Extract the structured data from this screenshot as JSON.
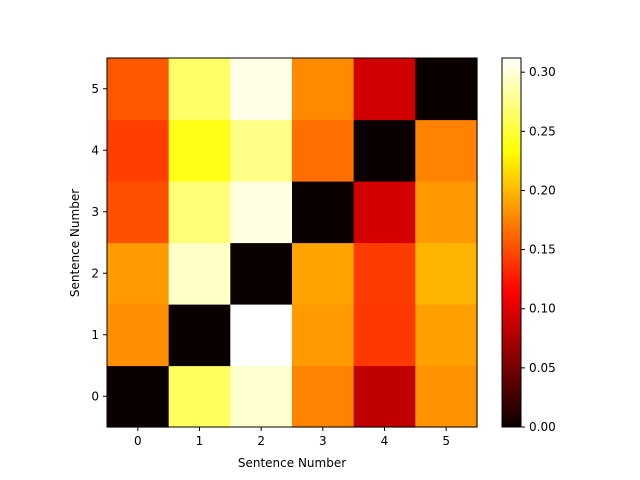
{
  "chart_data": {
    "type": "heatmap",
    "title": "",
    "xlabel": "Sentence Number",
    "ylabel": "Sentence Number",
    "x_categories": [
      "0",
      "1",
      "2",
      "3",
      "4",
      "5"
    ],
    "y_categories": [
      "0",
      "1",
      "2",
      "3",
      "4",
      "5"
    ],
    "colormap": "hot",
    "colorbar": {
      "min": 0.0,
      "max": 0.312,
      "ticks": [
        0.0,
        0.05,
        0.1,
        0.15,
        0.2,
        0.25,
        0.3
      ],
      "tick_labels": [
        "0.00",
        "0.05",
        "0.10",
        "0.15",
        "0.20",
        "0.25",
        "0.30"
      ]
    },
    "rows": [
      {
        "y": "0",
        "values": [
          0.0,
          0.262,
          0.297,
          0.175,
          0.08,
          0.182
        ]
      },
      {
        "y": "1",
        "values": [
          0.18,
          0.0,
          0.312,
          0.186,
          0.14,
          0.188
        ]
      },
      {
        "y": "2",
        "values": [
          0.186,
          0.295,
          0.0,
          0.19,
          0.142,
          0.198
        ]
      },
      {
        "y": "3",
        "values": [
          0.151,
          0.27,
          0.303,
          0.0,
          0.09,
          0.185
        ]
      },
      {
        "y": "4",
        "values": [
          0.143,
          0.24,
          0.275,
          0.165,
          0.0,
          0.175
        ]
      },
      {
        "y": "5",
        "values": [
          0.155,
          0.265,
          0.305,
          0.178,
          0.088,
          0.0
        ]
      }
    ]
  }
}
